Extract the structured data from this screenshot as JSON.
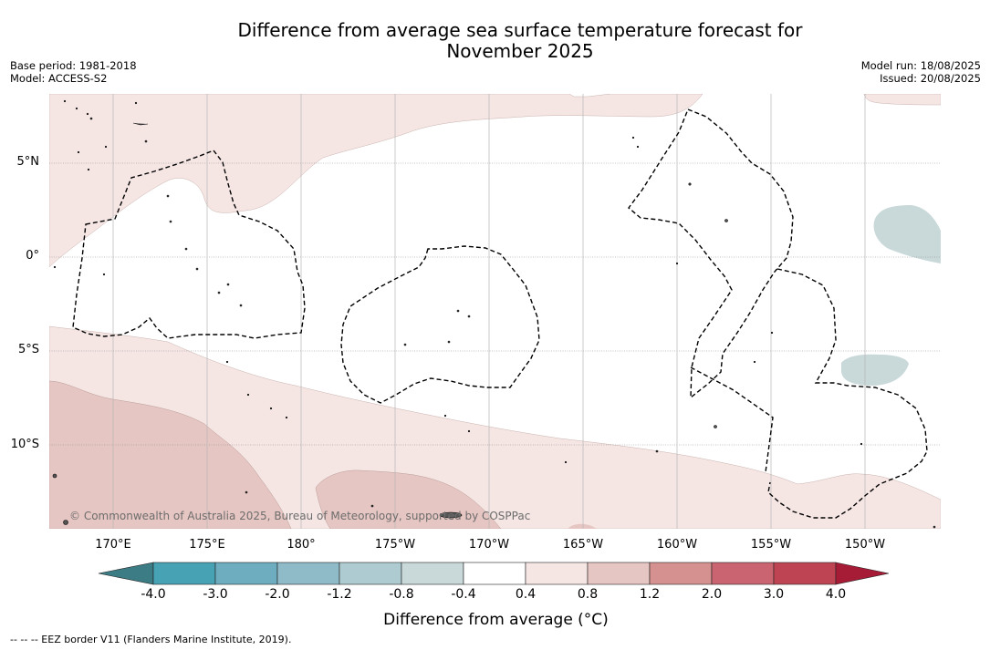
{
  "title": {
    "line1": "Difference from average sea surface temperature forecast for",
    "line2": "November 2025"
  },
  "meta_left": {
    "base_period": "Base period: 1981-2018",
    "model": "Model: ACCESS-S2"
  },
  "meta_right": {
    "model_run": "Model run: 18/08/2025",
    "issued": "Issued: 20/08/2025"
  },
  "lat_labels": [
    "5°N",
    "0°",
    "5°S",
    "10°S"
  ],
  "lon_labels": [
    "170°E",
    "175°E",
    "180°",
    "175°W",
    "170°W",
    "165°W",
    "160°W",
    "155°W",
    "150°W"
  ],
  "copyright": "© Commonwealth of Australia 2025, Bureau of Meteorology, supported by COSPPac",
  "colorbar": {
    "ticks": [
      "-4.0",
      "-3.0",
      "-2.0",
      "-1.2",
      "-0.8",
      "-0.4",
      "0.4",
      "0.8",
      "1.2",
      "2.0",
      "3.0",
      "4.0"
    ],
    "colors": [
      "#3c7c84",
      "#47a2b4",
      "#6dadbf",
      "#8fbac7",
      "#aecbd1",
      "#c9d9da",
      "#ffffff",
      "#f5e6e4",
      "#e6c6c2",
      "#d4918f",
      "#c96470",
      "#bf4453",
      "#a61c36"
    ],
    "label": "Difference from average (°C)"
  },
  "legend_note": "--  --  -- EEZ border V11 (Flanders Marine Institute, 2019).",
  "map_colors": {
    "light_warm": "#f5e6e4",
    "warm": "#e6c6c2",
    "light_cool": "#c9d9da"
  }
}
